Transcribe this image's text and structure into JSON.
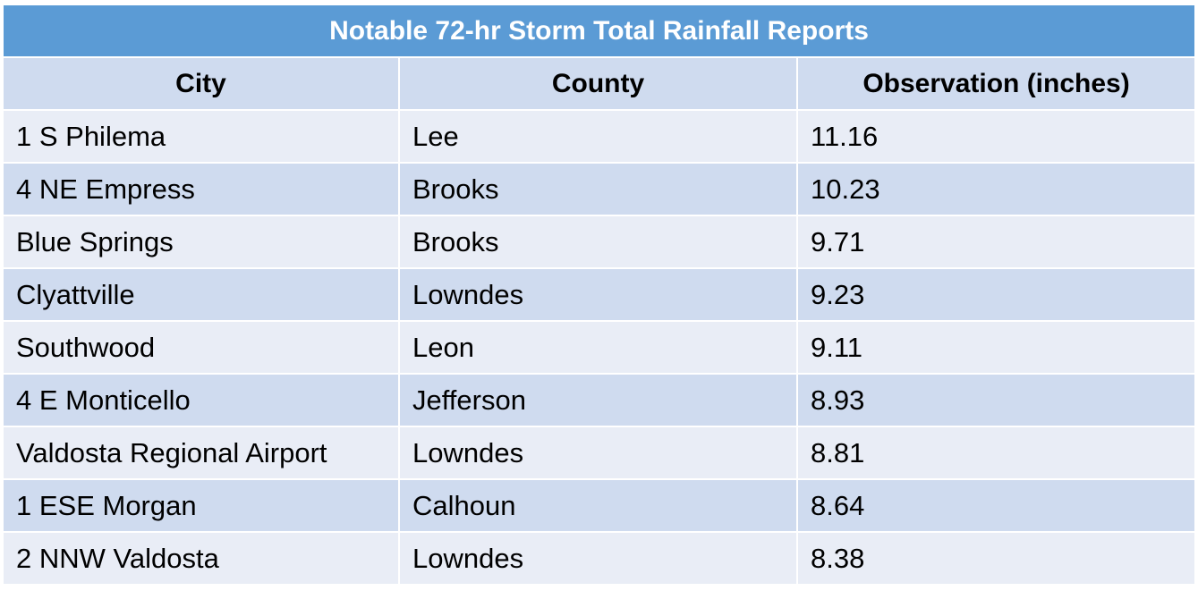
{
  "table": {
    "title": "Notable 72-hr Storm Total Rainfall Reports",
    "columns": [
      "City",
      "County",
      "Observation (inches)"
    ],
    "rows": [
      [
        "1 S Philema",
        "Lee",
        "11.16"
      ],
      [
        "4 NE Empress",
        "Brooks",
        "10.23"
      ],
      [
        "Blue Springs",
        "Brooks",
        "9.71"
      ],
      [
        "Clyattville",
        "Lowndes",
        "9.23"
      ],
      [
        "Southwood",
        "Leon",
        "9.11"
      ],
      [
        "4 E Monticello",
        "Jefferson",
        "8.93"
      ],
      [
        "Valdosta Regional Airport",
        "Lowndes",
        "8.81"
      ],
      [
        "1 ESE Morgan",
        "Calhoun",
        "8.64"
      ],
      [
        "2 NNW Valdosta",
        "Lowndes",
        "8.38"
      ]
    ]
  },
  "colors": {
    "title_bg": "#5b9bd5",
    "row_dark": "#cfdbef",
    "row_light": "#e9edf6"
  }
}
